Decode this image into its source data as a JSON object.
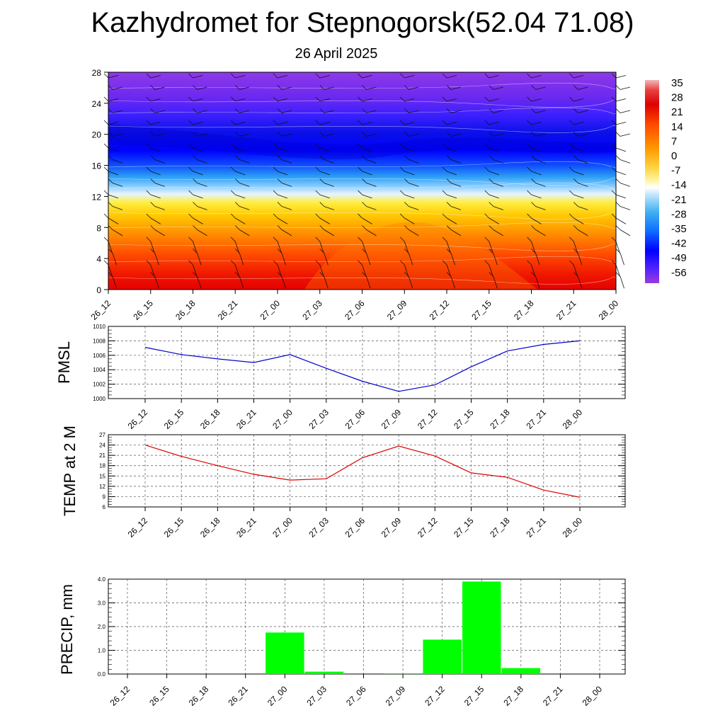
{
  "title": "Kazhydromet for Stepnogorsk(52.04 71.08)",
  "subtitle": "26 April 2025",
  "chart_data": [
    {
      "type": "heatmap",
      "description_vars": "temperature contour with wind barbs by height",
      "x_ticks": [
        "26_12",
        "26_15",
        "26_18",
        "26_21",
        "27_00",
        "27_03",
        "27_06",
        "27_09",
        "27_12",
        "27_15",
        "27_18",
        "27_21",
        "28_00"
      ],
      "y_ticks": [
        "0",
        "4",
        "8",
        "12",
        "16",
        "20",
        "24",
        "28"
      ],
      "ylim": [
        0,
        28
      ],
      "colorbar_labels": [
        "35",
        "28",
        "21",
        "14",
        "7",
        "0",
        "-7",
        "-14",
        "-21",
        "-28",
        "-35",
        "-42",
        "-49",
        "-56"
      ],
      "colors": {
        "warm": "#e00000",
        "mid": "#ffe000",
        "cold": "#0000ff",
        "top": "#8a2be2"
      }
    },
    {
      "type": "line",
      "ylabel": "PMSL",
      "x": [
        "26_12",
        "26_15",
        "26_18",
        "26_21",
        "27_00",
        "27_03",
        "27_06",
        "27_09",
        "27_12",
        "27_15",
        "27_18",
        "27_21",
        "28_00"
      ],
      "y_ticks": [
        "1000",
        "1002",
        "1004",
        "1006",
        "1008",
        "1010"
      ],
      "ylim": [
        1000,
        1010
      ],
      "series": [
        {
          "values": [
            1007.1,
            1006.1,
            1005.5,
            1005.0,
            1006.1,
            1004.2,
            1002.4,
            1001.0,
            1001.9,
            1004.4,
            1006.6,
            1007.5,
            1008.0
          ],
          "color": "#0000cc"
        }
      ]
    },
    {
      "type": "line",
      "ylabel": "TEMP at 2 M",
      "x": [
        "26_12",
        "26_15",
        "26_18",
        "26_21",
        "27_00",
        "27_03",
        "27_06",
        "27_09",
        "27_12",
        "27_15",
        "27_18",
        "27_21",
        "28_00"
      ],
      "y_ticks": [
        "6",
        "9",
        "12",
        "15",
        "18",
        "21",
        "24",
        "27"
      ],
      "ylim": [
        6,
        27
      ],
      "series": [
        {
          "values": [
            24.0,
            20.7,
            18.0,
            15.5,
            13.8,
            14.2,
            20.3,
            23.7,
            20.8,
            15.9,
            14.6,
            10.9,
            8.8
          ],
          "color": "#dd0000"
        }
      ]
    },
    {
      "type": "bar",
      "ylabel": "PRECIP, mm",
      "categories": [
        "26_12",
        "26_15",
        "26_18",
        "26_21",
        "27_00",
        "27_03",
        "27_06",
        "27_09",
        "27_12",
        "27_15",
        "27_18",
        "27_21",
        "28_00"
      ],
      "y_ticks": [
        "0.0",
        "1.0",
        "2.0",
        "3.0",
        "4.0"
      ],
      "ylim": [
        0,
        4
      ],
      "values": [
        0,
        0,
        0,
        0,
        1.75,
        0.1,
        0,
        0.03,
        1.45,
        3.9,
        0.25,
        0,
        0
      ],
      "color": "#00ff00"
    }
  ]
}
